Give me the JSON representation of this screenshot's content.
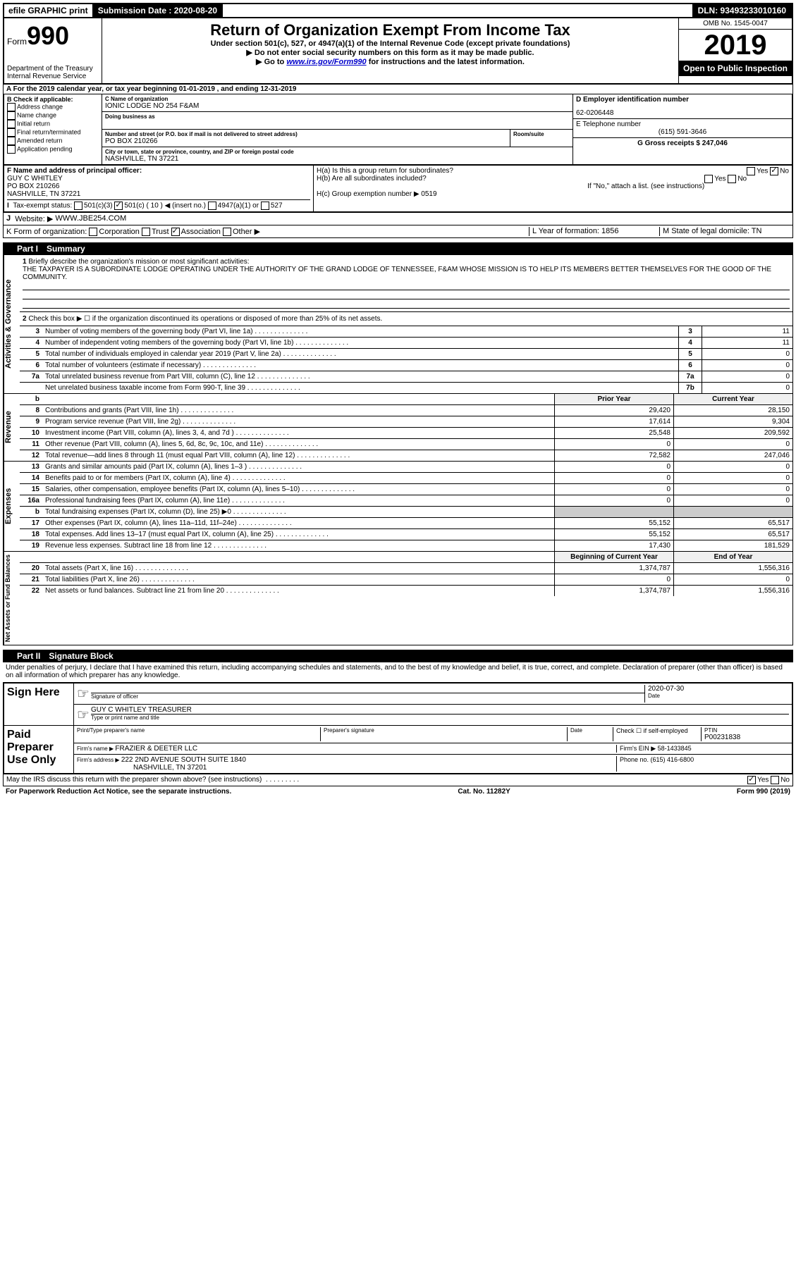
{
  "topbar": {
    "efile": "efile GRAPHIC print",
    "subdate_label": "Submission Date : 2020-08-20",
    "dln": "DLN: 93493233010160"
  },
  "header": {
    "form_label": "Form",
    "form_no": "990",
    "dept": "Department of the Treasury",
    "irs": "Internal Revenue Service",
    "title": "Return of Organization Exempt From Income Tax",
    "sub1": "Under section 501(c), 527, or 4947(a)(1) of the Internal Revenue Code (except private foundations)",
    "sub2": "Do not enter social security numbers on this form as it may be made public.",
    "sub3_pre": "Go to ",
    "sub3_link": "www.irs.gov/Form990",
    "sub3_post": " for instructions and the latest information.",
    "omb": "OMB No. 1545-0047",
    "year": "2019",
    "open": "Open to Public Inspection"
  },
  "periodA": "For the 2019 calendar year, or tax year beginning 01-01-2019    , and ending 12-31-2019",
  "B": {
    "label": "B Check if applicable:",
    "items": [
      "Address change",
      "Name change",
      "Initial return",
      "Final return/terminated",
      "Amended return",
      "Application pending"
    ]
  },
  "C": {
    "name_label": "C Name of organization",
    "name": "IONIC LODGE NO 254 F&AM",
    "dba_label": "Doing business as",
    "addr_label": "Number and street (or P.O. box if mail is not delivered to street address)",
    "room_label": "Room/suite",
    "addr": "PO BOX 210266",
    "city_label": "City or town, state or province, country, and ZIP or foreign postal code",
    "city": "NASHVILLE, TN  37221"
  },
  "D": {
    "label": "D Employer identification number",
    "val": "62-0206448"
  },
  "E": {
    "label": "E Telephone number",
    "val": "(615) 591-3646"
  },
  "G": {
    "label": "G Gross receipts $ 247,046"
  },
  "F": {
    "label": "F  Name and address of principal officer:",
    "name": "GUY C WHITLEY",
    "addr1": "PO BOX 210266",
    "addr2": "NASHVILLE, TN  37221"
  },
  "H": {
    "a": "H(a)  Is this a group return for subordinates?",
    "b": "H(b)  Are all subordinates included?",
    "b_note": "If \"No,\" attach a list. (see instructions)",
    "c": "H(c)  Group exemption number ▶   0519"
  },
  "I": {
    "label": "Tax-exempt status:",
    "c3": "501(c)(3)",
    "cx_pre": "501(c) ( 10 ) ◀ (insert no.)",
    "a1": "4947(a)(1) or",
    "s527": "527"
  },
  "J": {
    "label": "Website: ▶",
    "val": "WWW.JBE254.COM"
  },
  "K": {
    "label": "K Form of organization:",
    "opts": [
      "Corporation",
      "Trust",
      "Association",
      "Other ▶"
    ]
  },
  "L": {
    "label": "L Year of formation: 1856"
  },
  "M": {
    "label": "M State of legal domicile: TN"
  },
  "part1": {
    "label": "Part I",
    "title": "Summary"
  },
  "summary": {
    "sideLabels": [
      "Activities & Governance",
      "Revenue",
      "Expenses",
      "Net Assets or Fund Balances"
    ],
    "q1_label": "Briefly describe the organization's mission or most significant activities:",
    "q1_text": "THE TAXPAYER IS A SUBORDINATE LODGE OPERATING UNDER THE AUTHORITY OF THE GRAND LODGE OF TENNESSEE, F&AM WHOSE MISSION IS TO HELP ITS MEMBERS BETTER THEMSELVES FOR THE GOOD OF THE COMMUNITY.",
    "q2": "Check this box ▶ ☐ if the organization discontinued its operations or disposed of more than 25% of its net assets.",
    "rows_gov": [
      {
        "n": "3",
        "d": "Number of voting members of the governing body (Part VI, line 1a)",
        "box": "3",
        "v": "11"
      },
      {
        "n": "4",
        "d": "Number of independent voting members of the governing body (Part VI, line 1b)",
        "box": "4",
        "v": "11"
      },
      {
        "n": "5",
        "d": "Total number of individuals employed in calendar year 2019 (Part V, line 2a)",
        "box": "5",
        "v": "0"
      },
      {
        "n": "6",
        "d": "Total number of volunteers (estimate if necessary)",
        "box": "6",
        "v": "0"
      },
      {
        "n": "7a",
        "d": "Total unrelated business revenue from Part VIII, column (C), line 12",
        "box": "7a",
        "v": "0"
      },
      {
        "n": "",
        "d": "Net unrelated business taxable income from Form 990-T, line 39",
        "box": "7b",
        "v": "0"
      }
    ],
    "col_headers": {
      "prior": "Prior Year",
      "current": "Current Year"
    },
    "rows_rev": [
      {
        "n": "8",
        "d": "Contributions and grants (Part VIII, line 1h)",
        "p": "29,420",
        "c": "28,150"
      },
      {
        "n": "9",
        "d": "Program service revenue (Part VIII, line 2g)",
        "p": "17,614",
        "c": "9,304"
      },
      {
        "n": "10",
        "d": "Investment income (Part VIII, column (A), lines 3, 4, and 7d )",
        "p": "25,548",
        "c": "209,592"
      },
      {
        "n": "11",
        "d": "Other revenue (Part VIII, column (A), lines 5, 6d, 8c, 9c, 10c, and 11e)",
        "p": "0",
        "c": "0"
      },
      {
        "n": "12",
        "d": "Total revenue—add lines 8 through 11 (must equal Part VIII, column (A), line 12)",
        "p": "72,582",
        "c": "247,046"
      }
    ],
    "rows_exp": [
      {
        "n": "13",
        "d": "Grants and similar amounts paid (Part IX, column (A), lines 1–3 )",
        "p": "0",
        "c": "0"
      },
      {
        "n": "14",
        "d": "Benefits paid to or for members (Part IX, column (A), line 4)",
        "p": "0",
        "c": "0"
      },
      {
        "n": "15",
        "d": "Salaries, other compensation, employee benefits (Part IX, column (A), lines 5–10)",
        "p": "0",
        "c": "0"
      },
      {
        "n": "16a",
        "d": "Professional fundraising fees (Part IX, column (A), line 11e)",
        "p": "0",
        "c": "0"
      },
      {
        "n": "b",
        "d": "Total fundraising expenses (Part IX, column (D), line 25) ▶0",
        "p": "",
        "c": "",
        "shaded": true
      },
      {
        "n": "17",
        "d": "Other expenses (Part IX, column (A), lines 11a–11d, 11f–24e)",
        "p": "55,152",
        "c": "65,517"
      },
      {
        "n": "18",
        "d": "Total expenses. Add lines 13–17 (must equal Part IX, column (A), line 25)",
        "p": "55,152",
        "c": "65,517"
      },
      {
        "n": "19",
        "d": "Revenue less expenses. Subtract line 18 from line 12",
        "p": "17,430",
        "c": "181,529"
      }
    ],
    "net_headers": {
      "begin": "Beginning of Current Year",
      "end": "End of Year"
    },
    "rows_net": [
      {
        "n": "20",
        "d": "Total assets (Part X, line 16)",
        "p": "1,374,787",
        "c": "1,556,316"
      },
      {
        "n": "21",
        "d": "Total liabilities (Part X, line 26)",
        "p": "0",
        "c": "0"
      },
      {
        "n": "22",
        "d": "Net assets or fund balances. Subtract line 21 from line 20",
        "p": "1,374,787",
        "c": "1,556,316"
      }
    ]
  },
  "part2": {
    "label": "Part II",
    "title": "Signature Block"
  },
  "sig": {
    "declaration": "Under penalties of perjury, I declare that I have examined this return, including accompanying schedules and statements, and to the best of my knowledge and belief, it is true, correct, and complete. Declaration of preparer (other than officer) is based on all information of which preparer has any knowledge.",
    "sign_here": "Sign Here",
    "sig_officer": "Signature of officer",
    "date_label": "Date",
    "date": "2020-07-30",
    "name": "GUY C WHITLEY TREASURER",
    "name_label": "Type or print name and title",
    "paid": "Paid Preparer Use Only",
    "prep_name_label": "Print/Type preparer's name",
    "prep_sig_label": "Preparer's signature",
    "check_self": "Check ☐ if self-employed",
    "ptin_label": "PTIN",
    "ptin": "P00231838",
    "firm_name_label": "Firm's name    ▶ ",
    "firm_name": "FRAZIER & DEETER LLC",
    "firm_ein": "Firm's EIN ▶ 58-1433845",
    "firm_addr_label": "Firm's address ▶ ",
    "firm_addr1": "222 2ND AVENUE SOUTH SUITE 1840",
    "firm_addr2": "NASHVILLE, TN  37201",
    "phone": "Phone no. (615) 416-6800",
    "discuss": "May the IRS discuss this return with the preparer shown above? (see instructions)"
  },
  "footer": {
    "left": "For Paperwork Reduction Act Notice, see the separate instructions.",
    "mid": "Cat. No. 11282Y",
    "right": "Form 990 (2019)"
  }
}
